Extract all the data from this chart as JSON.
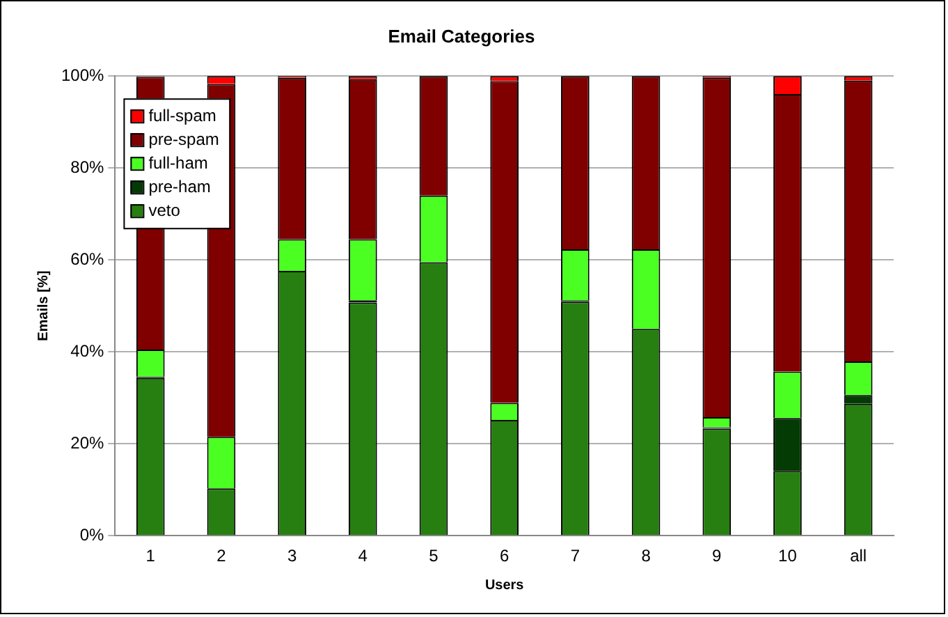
{
  "chart_data": {
    "type": "bar",
    "title": "Email Categories",
    "xlabel": "Users",
    "ylabel": "Emails [%]",
    "categories": [
      "1",
      "2",
      "3",
      "4",
      "5",
      "6",
      "7",
      "8",
      "9",
      "10",
      "all"
    ],
    "stacked": true,
    "series": [
      {
        "name": "veto",
        "color": "#267f10",
        "values": [
          34.3,
          10.3,
          57.6,
          50.7,
          59.5,
          25.2,
          50.9,
          45.0,
          23.3,
          14.1,
          28.7
        ]
      },
      {
        "name": "pre-ham",
        "color": "#043a04",
        "values": [
          0.3,
          0,
          0,
          0.5,
          0,
          0,
          0.3,
          0,
          0.3,
          11.5,
          1.9
        ]
      },
      {
        "name": "full-ham",
        "color": "#4cff23",
        "values": [
          5.9,
          11.2,
          6.9,
          13.3,
          14.5,
          3.7,
          11.1,
          17.3,
          2.2,
          10.1,
          7.3
        ]
      },
      {
        "name": "pre-spam",
        "color": "#800000",
        "values": [
          59.3,
          76.8,
          35.1,
          34.8,
          26.0,
          70.0,
          37.7,
          37.7,
          73.9,
          60.4,
          61.1
        ]
      },
      {
        "name": "full-spam",
        "color": "#ff0000",
        "values": [
          0.2,
          1.7,
          0.4,
          0.7,
          0,
          1.1,
          0,
          0,
          0.3,
          3.9,
          1.0
        ]
      }
    ],
    "ylim": [
      0,
      100
    ],
    "yticks": [
      {
        "value": 0,
        "label": "0%"
      },
      {
        "value": 20,
        "label": "20%"
      },
      {
        "value": 40,
        "label": "40%"
      },
      {
        "value": 60,
        "label": "60%"
      },
      {
        "value": 80,
        "label": "80%"
      },
      {
        "value": 100,
        "label": "100%"
      }
    ],
    "grid": "y",
    "legend": "top left"
  }
}
